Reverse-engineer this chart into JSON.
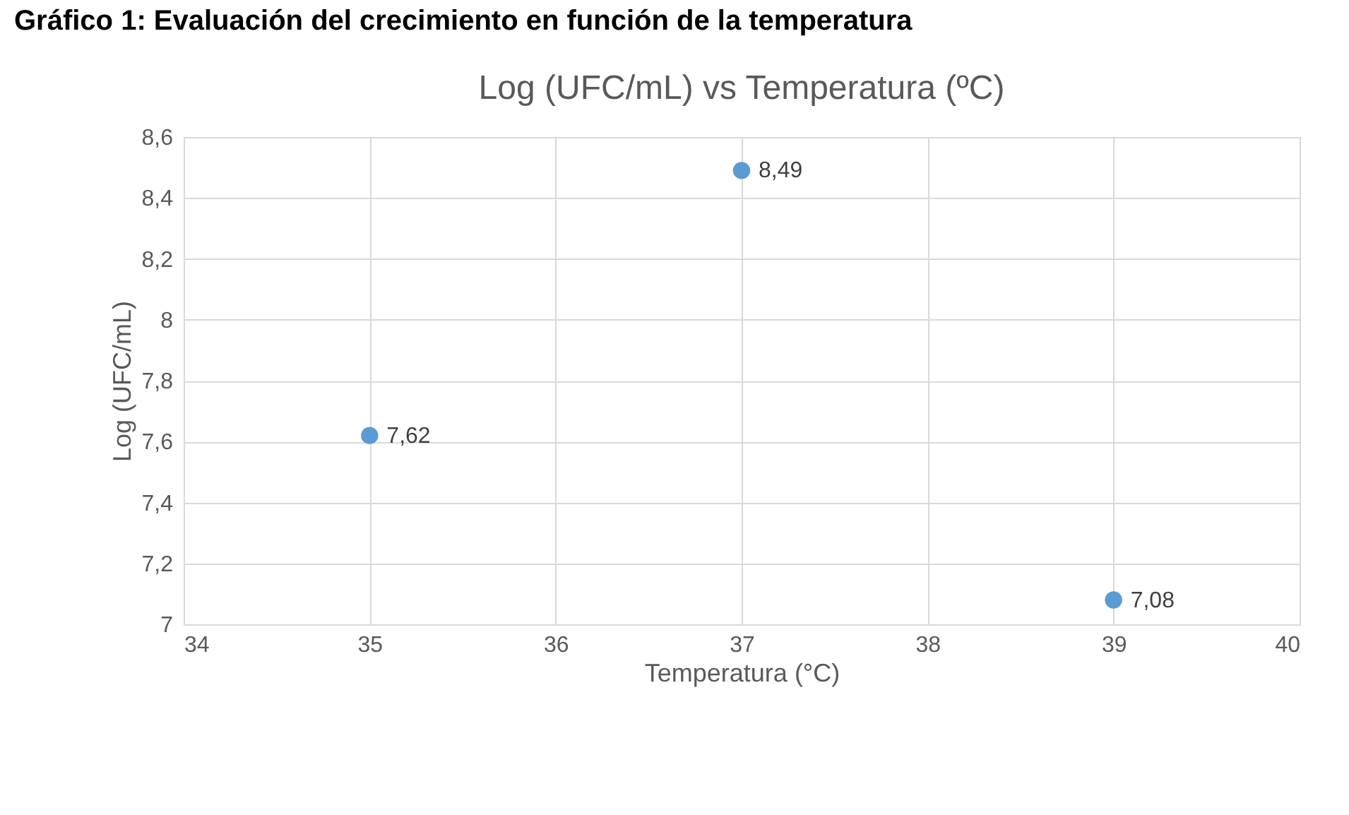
{
  "chart_data": {
    "type": "scatter",
    "title": "Log (UFC/mL) vs Temperatura (ºC)",
    "xlabel": "Temperatura (°C)",
    "ylabel": "Log (UFC/mL)",
    "annotations": [
      "Gráfico 1: Evaluación del crecimiento en función de la temperatura"
    ],
    "x": [
      35,
      37,
      39
    ],
    "series": [
      {
        "color": "#5b9bd5",
        "values": [
          7.62,
          8.49,
          7.08
        ],
        "value_labels": [
          "7,62",
          "8,49",
          "7,08"
        ]
      }
    ],
    "xlim": [
      34,
      40
    ],
    "xticks": [
      34,
      35,
      36,
      37,
      38,
      39,
      40
    ],
    "ylim": [
      7,
      8.6
    ],
    "yticks": [
      7,
      {
        "value": 7.2,
        "label": "7,2"
      },
      {
        "value": 7.4,
        "label": "7,4"
      },
      {
        "value": 7.6,
        "label": "7,6"
      },
      {
        "value": 7.8,
        "label": "7,8"
      },
      8,
      {
        "value": 8.2,
        "label": "8,2"
      },
      {
        "value": 8.4,
        "label": "8,4"
      },
      {
        "value": 8.6,
        "label": "8,6"
      }
    ],
    "grid": true,
    "marker": "circle"
  }
}
